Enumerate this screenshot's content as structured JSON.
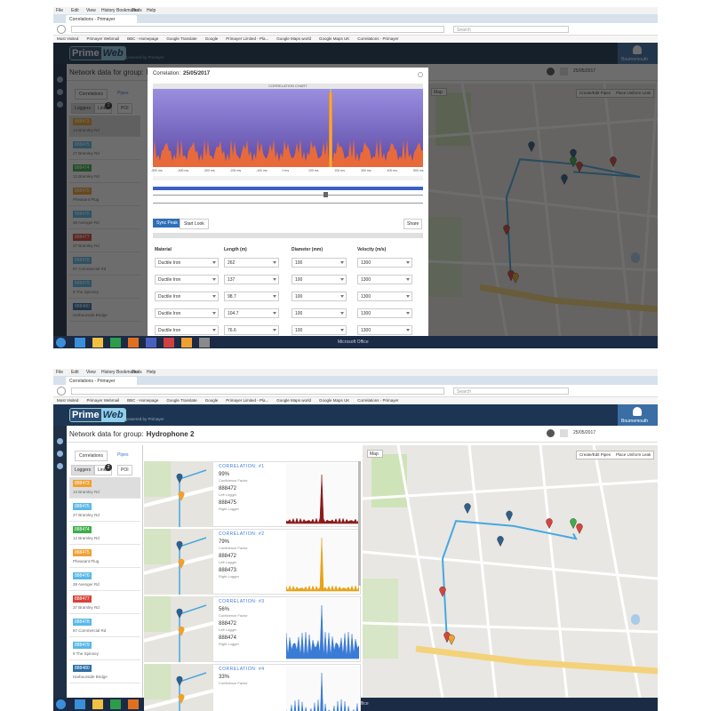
{
  "browser": {
    "menu": [
      "File",
      "Edit",
      "View",
      "History",
      "Bookmarks",
      "Tools",
      "Help"
    ],
    "tab": "Correlations - Primayer",
    "search": "Search",
    "bookmarks": [
      "Most Visited",
      "Primayer Webmail",
      "BBC - Homepage",
      "Google Translate",
      "Google",
      "Primayer Limited - Pla...",
      "Google Maps world",
      "Google Maps UK",
      "Correlations - Primayer"
    ]
  },
  "app": {
    "logo_prime": "Prime",
    "logo_web": "Web",
    "powered": "powered by Primayer",
    "user": "Bournemouth",
    "group_label": "Network data for group:",
    "group_name": "Hydrophone 2",
    "date": "25/05/2017",
    "tabs": [
      "Correlations",
      "Pipes"
    ],
    "subtabs": [
      "Loggers",
      "Links",
      "POI"
    ],
    "links_count": "2",
    "map_type": "Map",
    "map_options": [
      "Create/Edit Pipes",
      "Place Uniform Leak"
    ],
    "loggers": [
      {
        "id": "888473",
        "address": "13 Bramley Rd",
        "color": "#f0a030"
      },
      {
        "id": "888475",
        "address": "27 Bramley Rd",
        "color": "#5bb8e8"
      },
      {
        "id": "888474",
        "address": "12 Bramley Rd",
        "color": "#3cae4a"
      },
      {
        "id": "888475",
        "address": "Pheasant Plug",
        "color": "#f0a030"
      },
      {
        "id": "888476",
        "address": "38 Avenger Rd",
        "color": "#5bb8e8"
      },
      {
        "id": "888477",
        "address": "37 Bramley Rd",
        "color": "#d9433a"
      },
      {
        "id": "888478",
        "address": "87 Commercial Rd",
        "color": "#5bb8e8"
      },
      {
        "id": "888479",
        "address": "9 The Spinney",
        "color": "#5bb8e8"
      },
      {
        "id": "888480",
        "address": "Harbourside Bridge",
        "color": "#2f6fa8"
      }
    ]
  },
  "modal": {
    "title_label": "Correlation:",
    "title_date": "25/05/2017",
    "chart_title": "CORRELATION CHART",
    "ticks": [
      "-500 ms",
      "-400 ms",
      "-300 ms",
      "-200 ms",
      "-100 ms",
      "0 ms",
      "100 ms",
      "200 ms",
      "300 ms",
      "400 ms",
      "500 ms"
    ],
    "buttons": [
      "Sync Peak",
      "Start Look"
    ],
    "share": "Share",
    "columns": [
      "Material",
      "Length (m)",
      "Diameter (mm)",
      "Velocity (m/s)"
    ],
    "rows": [
      [
        "Ductile Iron",
        "262",
        "100",
        "1300"
      ],
      [
        "Ductile Iron",
        "137",
        "100",
        "1300"
      ],
      [
        "Ductile Iron",
        "98.7",
        "100",
        "1300"
      ],
      [
        "Ductile Iron",
        "104.7",
        "100",
        "1300"
      ],
      [
        "Ductile Iron",
        "76.6",
        "100",
        "1300"
      ]
    ]
  },
  "cards": [
    {
      "title": "CORRELATION: #1",
      "confidence": "99%",
      "confidence_label": "Confidence Factor",
      "left": "888472",
      "left_label": "Left Logger",
      "right": "888475",
      "right_label": "Right Logger",
      "color": "#8b1a1a"
    },
    {
      "title": "CORRELATION: #2",
      "confidence": "79%",
      "confidence_label": "Confidence Factor",
      "left": "888472",
      "left_label": "Left Logger",
      "right": "888473",
      "right_label": "Right Logger",
      "color": "#e8a317"
    },
    {
      "title": "CORRELATION: #3",
      "confidence": "56%",
      "confidence_label": "Confidence Factor",
      "left": "888472",
      "left_label": "Left Logger",
      "right": "888474",
      "right_label": "Right Logger",
      "color": "#3a7bd5"
    },
    {
      "title": "CORRELATION: #4",
      "confidence": "33%",
      "confidence_label": "Confidence Factor",
      "color": "#3a7bd5"
    }
  ],
  "taskbar": "Microsoft Office"
}
